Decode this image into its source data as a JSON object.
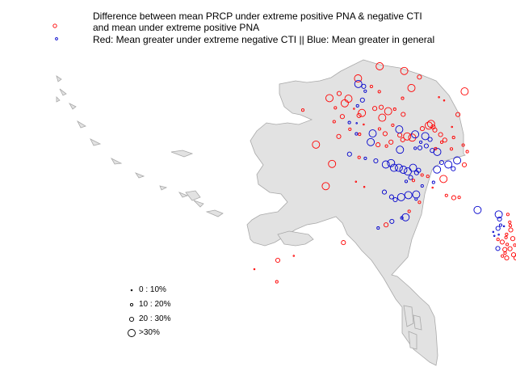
{
  "title": {
    "line1": "Difference between mean PRCP under extreme positive PNA & negative CTI",
    "line2": "and mean under extreme positive PNA",
    "line3": "Red: Mean greater under extreme negative CTI || Blue: Mean greater in general"
  },
  "colors": {
    "land": "#e2e2e2",
    "coast": "#a9a9a9",
    "positive": "#ff0000",
    "negative": "#0000cc"
  },
  "legend": {
    "items": [
      {
        "label": "0 : 10%",
        "size_class": 1
      },
      {
        "label": "10 : 20%",
        "size_class": 2
      },
      {
        "label": "20 : 30%",
        "size_class": 3
      },
      {
        "label": ">30%",
        "size_class": 4
      }
    ]
  },
  "map_data": {
    "stations": [
      {
        "lon": -160.79,
        "lat": 70.21,
        "color": "red",
        "size_class": 4
      },
      {
        "lon": -156.79,
        "lat": 71.29,
        "color": "red",
        "size_class": 4
      },
      {
        "lon": -152.26,
        "lat": 70.87,
        "color": "red",
        "size_class": 4
      },
      {
        "lon": -149.45,
        "lat": 70.33,
        "color": "red",
        "size_class": 3
      },
      {
        "lon": -141.09,
        "lat": 69.05,
        "color": "red",
        "size_class": 4
      },
      {
        "lon": -160.74,
        "lat": 69.71,
        "color": "blue",
        "size_class": 4
      },
      {
        "lon": -159.75,
        "lat": 69.5,
        "color": "blue",
        "size_class": 3
      },
      {
        "lon": -159.47,
        "lat": 69.07,
        "color": "blue",
        "size_class": 2
      },
      {
        "lon": -158.33,
        "lat": 69.49,
        "color": "red",
        "size_class": 2
      },
      {
        "lon": -156.87,
        "lat": 69.03,
        "color": "red",
        "size_class": 2
      },
      {
        "lon": -159.99,
        "lat": 68.28,
        "color": "blue",
        "size_class": 3
      },
      {
        "lon": -152.57,
        "lat": 68.44,
        "color": "red",
        "size_class": 2
      },
      {
        "lon": -150.93,
        "lat": 69.35,
        "color": "red",
        "size_class": 4
      },
      {
        "lon": -145.84,
        "lat": 68.54,
        "color": "red",
        "size_class": 1
      },
      {
        "lon": -144.88,
        "lat": 68.25,
        "color": "red",
        "size_class": 1
      },
      {
        "lon": -166.08,
        "lat": 68.45,
        "color": "red",
        "size_class": 4
      },
      {
        "lon": -164.29,
        "lat": 68.86,
        "color": "red",
        "size_class": 3
      },
      {
        "lon": -162.57,
        "lat": 68.4,
        "color": "red",
        "size_class": 4
      },
      {
        "lon": -163.26,
        "lat": 67.99,
        "color": "red",
        "size_class": 4
      },
      {
        "lon": -160.89,
        "lat": 67.77,
        "color": "blue",
        "size_class": 2
      },
      {
        "lon": -160.07,
        "lat": 67.14,
        "color": "red",
        "size_class": 4
      },
      {
        "lon": -157.7,
        "lat": 67.53,
        "color": "red",
        "size_class": 3
      },
      {
        "lon": -156.51,
        "lat": 67.64,
        "color": "red",
        "size_class": 3
      },
      {
        "lon": -155.23,
        "lat": 67.29,
        "color": "red",
        "size_class": 4
      },
      {
        "lon": -154.02,
        "lat": 67.47,
        "color": "red",
        "size_class": 2
      },
      {
        "lon": -152.45,
        "lat": 67.01,
        "color": "red",
        "size_class": 3
      },
      {
        "lon": -164.99,
        "lat": 67.59,
        "color": "red",
        "size_class": 2
      },
      {
        "lon": -161.54,
        "lat": 67.51,
        "color": "red",
        "size_class": 1
      },
      {
        "lon": -160.61,
        "lat": 66.91,
        "color": "red",
        "size_class": 3
      },
      {
        "lon": -171.0,
        "lat": 67.39,
        "color": "red",
        "size_class": 2
      },
      {
        "lon": -165.21,
        "lat": 66.36,
        "color": "red",
        "size_class": 2
      },
      {
        "lon": -163.7,
        "lat": 66.81,
        "color": "red",
        "size_class": 3
      },
      {
        "lon": -162.41,
        "lat": 66.28,
        "color": "blue",
        "size_class": 2
      },
      {
        "lon": -161.05,
        "lat": 66.22,
        "color": "blue",
        "size_class": 1
      },
      {
        "lon": -159.74,
        "lat": 66.11,
        "color": "red",
        "size_class": 1
      },
      {
        "lon": -158.09,
        "lat": 65.31,
        "color": "blue",
        "size_class": 4
      },
      {
        "lon": -156.84,
        "lat": 65.71,
        "color": "red",
        "size_class": 2
      },
      {
        "lon": -156.33,
        "lat": 66.71,
        "color": "red",
        "size_class": 4
      },
      {
        "lon": -155.79,
        "lat": 65.29,
        "color": "red",
        "size_class": 3
      },
      {
        "lon": -154.37,
        "lat": 66.04,
        "color": "red",
        "size_class": 2
      },
      {
        "lon": -153.08,
        "lat": 65.16,
        "color": "red",
        "size_class": 3
      },
      {
        "lon": -153.18,
        "lat": 65.67,
        "color": "blue",
        "size_class": 4
      },
      {
        "lon": -151.72,
        "lat": 65.04,
        "color": "red",
        "size_class": 4
      },
      {
        "lon": -150.77,
        "lat": 64.94,
        "color": "red",
        "size_class": 4
      },
      {
        "lon": -152.53,
        "lat": 64.75,
        "color": "red",
        "size_class": 3
      },
      {
        "lon": -150.24,
        "lat": 65.23,
        "color": "blue",
        "size_class": 4
      },
      {
        "lon": -148.91,
        "lat": 65.74,
        "color": "red",
        "size_class": 3
      },
      {
        "lon": -147.71,
        "lat": 66.01,
        "color": "red",
        "size_class": 4
      },
      {
        "lon": -146.91,
        "lat": 65.89,
        "color": "red",
        "size_class": 3
      },
      {
        "lon": -147.3,
        "lat": 66.16,
        "color": "red",
        "size_class": 4
      },
      {
        "lon": -146.59,
        "lat": 65.62,
        "color": "red",
        "size_class": 3
      },
      {
        "lon": -145.54,
        "lat": 65.21,
        "color": "red",
        "size_class": 3
      },
      {
        "lon": -143.44,
        "lat": 65.89,
        "color": "red",
        "size_class": 1
      },
      {
        "lon": -148.38,
        "lat": 65.07,
        "color": "blue",
        "size_class": 4
      },
      {
        "lon": -147.48,
        "lat": 64.78,
        "color": "blue",
        "size_class": 3
      },
      {
        "lon": -149.2,
        "lat": 64.53,
        "color": "blue",
        "size_class": 2
      },
      {
        "lon": -142.33,
        "lat": 66.99,
        "color": "red",
        "size_class": 3
      },
      {
        "lon": -143.14,
        "lat": 64.95,
        "color": "red",
        "size_class": 2
      },
      {
        "lon": -164.36,
        "lat": 65.04,
        "color": "red",
        "size_class": 3
      },
      {
        "lon": -162.3,
        "lat": 65.68,
        "color": "red",
        "size_class": 2
      },
      {
        "lon": -161.09,
        "lat": 65.27,
        "color": "blue",
        "size_class": 2
      },
      {
        "lon": -160.51,
        "lat": 65.24,
        "color": "red",
        "size_class": 2
      },
      {
        "lon": -158.45,
        "lat": 64.54,
        "color": "blue",
        "size_class": 4
      },
      {
        "lon": -157.1,
        "lat": 64.3,
        "color": "red",
        "size_class": 3
      },
      {
        "lon": -155.53,
        "lat": 64.19,
        "color": "red",
        "size_class": 2
      },
      {
        "lon": -154.7,
        "lat": 64.54,
        "color": "red",
        "size_class": 3
      },
      {
        "lon": -153.04,
        "lat": 63.86,
        "color": "blue",
        "size_class": 4
      },
      {
        "lon": -150.22,
        "lat": 63.99,
        "color": "blue",
        "size_class": 2
      },
      {
        "lon": -149.36,
        "lat": 64.03,
        "color": "blue",
        "size_class": 3
      },
      {
        "lon": -148.18,
        "lat": 64.2,
        "color": "blue",
        "size_class": 3
      },
      {
        "lon": -147.08,
        "lat": 63.79,
        "color": "blue",
        "size_class": 3
      },
      {
        "lon": -146.15,
        "lat": 63.67,
        "color": "blue",
        "size_class": 4
      },
      {
        "lon": -146.46,
        "lat": 63.96,
        "color": "red",
        "size_class": 2
      },
      {
        "lon": -145.33,
        "lat": 64.53,
        "color": "red",
        "size_class": 2
      },
      {
        "lon": -144.76,
        "lat": 64.72,
        "color": "red",
        "size_class": 3
      },
      {
        "lon": -143.54,
        "lat": 63.93,
        "color": "red",
        "size_class": 2
      },
      {
        "lon": -141.36,
        "lat": 64.27,
        "color": "red",
        "size_class": 2
      },
      {
        "lon": -140.61,
        "lat": 63.69,
        "color": "red",
        "size_class": 2
      },
      {
        "lon": -168.57,
        "lat": 64.32,
        "color": "red",
        "size_class": 4
      },
      {
        "lon": -162.37,
        "lat": 63.47,
        "color": "blue",
        "size_class": 3
      },
      {
        "lon": -160.59,
        "lat": 63.18,
        "color": "red",
        "size_class": 2
      },
      {
        "lon": -159.45,
        "lat": 63.09,
        "color": "blue",
        "size_class": 2
      },
      {
        "lon": -157.51,
        "lat": 62.87,
        "color": "blue",
        "size_class": 3
      },
      {
        "lon": -155.65,
        "lat": 62.55,
        "color": "blue",
        "size_class": 4
      },
      {
        "lon": -154.69,
        "lat": 62.67,
        "color": "blue",
        "size_class": 4
      },
      {
        "lon": -153.25,
        "lat": 62.25,
        "color": "blue",
        "size_class": 4
      },
      {
        "lon": -154.15,
        "lat": 62.25,
        "color": "blue",
        "size_class": 4
      },
      {
        "lon": -152.42,
        "lat": 62.08,
        "color": "blue",
        "size_class": 4
      },
      {
        "lon": -151.6,
        "lat": 61.93,
        "color": "blue",
        "size_class": 4
      },
      {
        "lon": -150.62,
        "lat": 62.25,
        "color": "blue",
        "size_class": 4
      },
      {
        "lon": -149.6,
        "lat": 62.03,
        "color": "blue",
        "size_class": 3
      },
      {
        "lon": -151.07,
        "lat": 61.39,
        "color": "blue",
        "size_class": 3
      },
      {
        "lon": -151.89,
        "lat": 61.04,
        "color": "blue",
        "size_class": 2
      },
      {
        "lon": -150.55,
        "lat": 61.12,
        "color": "red",
        "size_class": 2
      },
      {
        "lon": -149.97,
        "lat": 61.81,
        "color": "blue",
        "size_class": 3
      },
      {
        "lon": -148.96,
        "lat": 61.61,
        "color": "red",
        "size_class": 2
      },
      {
        "lon": -147.91,
        "lat": 61.49,
        "color": "red",
        "size_class": 2
      },
      {
        "lon": -146.19,
        "lat": 62.1,
        "color": "blue",
        "size_class": 4
      },
      {
        "lon": -145.34,
        "lat": 62.73,
        "color": "blue",
        "size_class": 3
      },
      {
        "lon": -144.1,
        "lat": 62.55,
        "color": "blue",
        "size_class": 4
      },
      {
        "lon": -143.2,
        "lat": 62.17,
        "color": "blue",
        "size_class": 3
      },
      {
        "lon": -142.48,
        "lat": 62.91,
        "color": "blue",
        "size_class": 4
      },
      {
        "lon": -141.15,
        "lat": 62.52,
        "color": "red",
        "size_class": 3
      },
      {
        "lon": -146.85,
        "lat": 60.96,
        "color": "blue",
        "size_class": 2
      },
      {
        "lon": -145.0,
        "lat": 61.26,
        "color": "red",
        "size_class": 4
      },
      {
        "lon": -147.02,
        "lat": 60.49,
        "color": "red",
        "size_class": 1
      },
      {
        "lon": -165.59,
        "lat": 62.6,
        "color": "red",
        "size_class": 4
      },
      {
        "lon": -166.76,
        "lat": 60.62,
        "color": "red",
        "size_class": 4
      },
      {
        "lon": -161.18,
        "lat": 61.02,
        "color": "red",
        "size_class": 1
      },
      {
        "lon": -159.64,
        "lat": 60.55,
        "color": "red",
        "size_class": 1
      },
      {
        "lon": -155.93,
        "lat": 60.09,
        "color": "blue",
        "size_class": 3
      },
      {
        "lon": -154.6,
        "lat": 59.66,
        "color": "blue",
        "size_class": 3
      },
      {
        "lon": -153.91,
        "lat": 59.42,
        "color": "blue",
        "size_class": 3
      },
      {
        "lon": -152.82,
        "lat": 59.64,
        "color": "blue",
        "size_class": 4
      },
      {
        "lon": -151.49,
        "lat": 59.82,
        "color": "blue",
        "size_class": 4
      },
      {
        "lon": -150.04,
        "lat": 59.88,
        "color": "blue",
        "size_class": 4
      },
      {
        "lon": -150.06,
        "lat": 59.47,
        "color": "blue",
        "size_class": 2
      },
      {
        "lon": -149.45,
        "lat": 59.18,
        "color": "red",
        "size_class": 2
      },
      {
        "lon": -148.94,
        "lat": 60.64,
        "color": "blue",
        "size_class": 2
      },
      {
        "lon": -152.0,
        "lat": 57.85,
        "color": "blue",
        "size_class": 4
      },
      {
        "lon": -151.34,
        "lat": 58.38,
        "color": "red",
        "size_class": 2
      },
      {
        "lon": -152.7,
        "lat": 57.79,
        "color": "blue",
        "size_class": 2
      },
      {
        "lon": -154.53,
        "lat": 57.48,
        "color": "blue",
        "size_class": 3
      },
      {
        "lon": -155.61,
        "lat": 57.17,
        "color": "red",
        "size_class": 3
      },
      {
        "lon": -157.07,
        "lat": 56.89,
        "color": "blue",
        "size_class": 2
      },
      {
        "lon": -163.5,
        "lat": 55.6,
        "color": "red",
        "size_class": 3
      },
      {
        "lon": -175.62,
        "lat": 54.02,
        "color": "red",
        "size_class": 3
      },
      {
        "lon": -179.95,
        "lat": 53.23,
        "color": "red",
        "size_class": 1
      },
      {
        "lon": -172.67,
        "lat": 54.42,
        "color": "red",
        "size_class": 1
      },
      {
        "lon": -175.8,
        "lat": 52.11,
        "color": "red",
        "size_class": 2
      },
      {
        "lon": -143.11,
        "lat": 59.59,
        "color": "red",
        "size_class": 3
      },
      {
        "lon": -144.47,
        "lat": 59.79,
        "color": "red",
        "size_class": 2
      },
      {
        "lon": -142.1,
        "lat": 59.62,
        "color": "red",
        "size_class": 2
      },
      {
        "lon": -138.7,
        "lat": 58.5,
        "color": "blue",
        "size_class": 4
      },
      {
        "lon": -134.79,
        "lat": 58.1,
        "color": "blue",
        "size_class": 4
      },
      {
        "lon": -134.64,
        "lat": 57.69,
        "color": "blue",
        "size_class": 3
      },
      {
        "lon": -134.44,
        "lat": 57.15,
        "color": "blue",
        "size_class": 2
      },
      {
        "lon": -134.92,
        "lat": 56.86,
        "color": "blue",
        "size_class": 3
      },
      {
        "lon": -133.82,
        "lat": 57.05,
        "color": "blue",
        "size_class": 1
      },
      {
        "lon": -133.11,
        "lat": 58.1,
        "color": "red",
        "size_class": 2
      },
      {
        "lon": -132.75,
        "lat": 57.41,
        "color": "red",
        "size_class": 2
      },
      {
        "lon": -132.66,
        "lat": 57.1,
        "color": "red",
        "size_class": 2
      },
      {
        "lon": -132.56,
        "lat": 56.72,
        "color": "red",
        "size_class": 3
      },
      {
        "lon": -133.33,
        "lat": 56.33,
        "color": "red",
        "size_class": 2
      },
      {
        "lon": -133.45,
        "lat": 56.05,
        "color": "red",
        "size_class": 2
      },
      {
        "lon": -132.19,
        "lat": 55.95,
        "color": "red",
        "size_class": 3
      },
      {
        "lon": -135.81,
        "lat": 56.55,
        "color": "blue",
        "size_class": 1
      },
      {
        "lon": -135.6,
        "lat": 56.2,
        "color": "blue",
        "size_class": 1
      },
      {
        "lon": -134.79,
        "lat": 56.31,
        "color": "blue",
        "size_class": 1
      },
      {
        "lon": -134.93,
        "lat": 55.88,
        "color": "red",
        "size_class": 2
      },
      {
        "lon": -134.15,
        "lat": 55.65,
        "color": "red",
        "size_class": 3
      },
      {
        "lon": -133.23,
        "lat": 55.43,
        "color": "red",
        "size_class": 2
      },
      {
        "lon": -134.95,
        "lat": 55.07,
        "color": "blue",
        "size_class": 3
      },
      {
        "lon": -133.66,
        "lat": 54.98,
        "color": "red",
        "size_class": 3
      },
      {
        "lon": -132.7,
        "lat": 55.05,
        "color": "red",
        "size_class": 3
      },
      {
        "lon": -131.82,
        "lat": 55.37,
        "color": "red",
        "size_class": 2
      },
      {
        "lon": -134.11,
        "lat": 54.4,
        "color": "red",
        "size_class": 2
      },
      {
        "lon": -133.31,
        "lat": 54.23,
        "color": "red",
        "size_class": 3
      },
      {
        "lon": -132.04,
        "lat": 54.51,
        "color": "red",
        "size_class": 3
      },
      {
        "lon": -131.59,
        "lat": 54.23,
        "color": "red",
        "size_class": 3
      },
      {
        "lon": -133.61,
        "lat": 54.66,
        "color": "red",
        "size_class": 2
      },
      {
        "lon": -130.89,
        "lat": 55.75,
        "color": "red",
        "size_class": 2
      }
    ]
  }
}
